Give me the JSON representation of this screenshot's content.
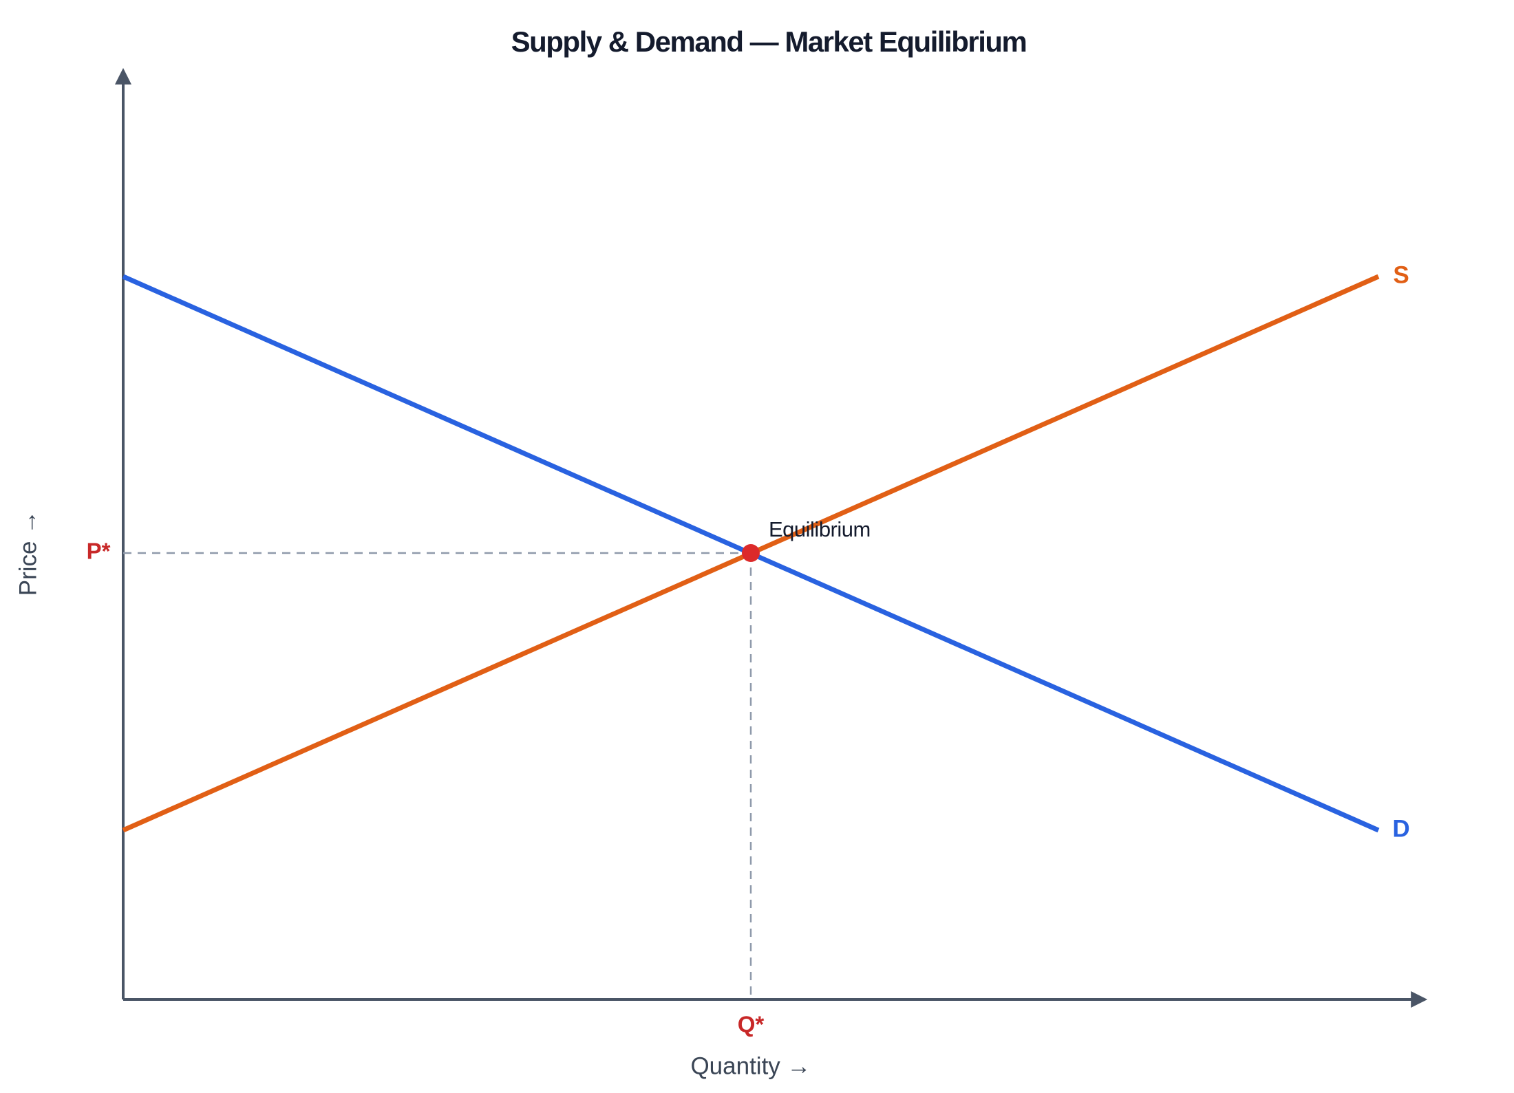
{
  "title": "Supply & Demand — Market Equilibrium",
  "axes": {
    "x_label": "Quantity →",
    "y_label": "Price →"
  },
  "curves": {
    "supply": "S",
    "demand": "D"
  },
  "equilibrium": {
    "label": "Equilibrium",
    "price": "P*",
    "quantity": "Q*"
  }
}
